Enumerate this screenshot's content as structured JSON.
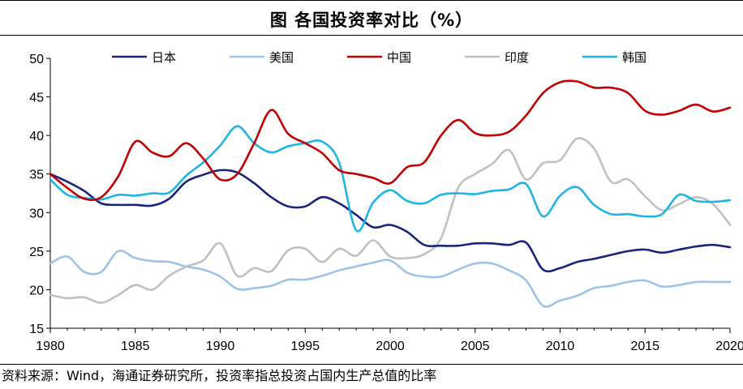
{
  "title": "图  各国投资率对比（%）",
  "source": "资料来源：Wind，海通证券研究所，投资率指总投资占国内生产总值的比率",
  "chart_data": {
    "type": "line",
    "title": "图  各国投资率对比（%）",
    "xlabel": "",
    "ylabel": "",
    "xlim": [
      1980,
      2020
    ],
    "ylim": [
      15,
      50
    ],
    "yticks": [
      15,
      20,
      25,
      30,
      35,
      40,
      45,
      50
    ],
    "xticks": [
      1980,
      1985,
      1990,
      1995,
      2000,
      2005,
      2010,
      2015,
      2020
    ],
    "grid": false,
    "legend_position": "top",
    "x": [
      1980,
      1981,
      1982,
      1983,
      1984,
      1985,
      1986,
      1987,
      1988,
      1989,
      1990,
      1991,
      1992,
      1993,
      1994,
      1995,
      1996,
      1997,
      1998,
      1999,
      2000,
      2001,
      2002,
      2003,
      2004,
      2005,
      2006,
      2007,
      2008,
      2009,
      2010,
      2011,
      2012,
      2013,
      2014,
      2015,
      2016,
      2017,
      2018,
      2019,
      2020
    ],
    "series": [
      {
        "name": "日本",
        "color": "#1a237e",
        "values": [
          35.0,
          34.0,
          32.8,
          31.2,
          31.0,
          31.0,
          30.9,
          31.8,
          34.0,
          34.9,
          35.5,
          35.2,
          33.8,
          32.0,
          30.8,
          30.8,
          32.0,
          31.2,
          29.7,
          28.1,
          28.4,
          27.5,
          25.8,
          25.7,
          25.7,
          26.0,
          26.0,
          25.8,
          26.1,
          22.6,
          22.8,
          23.6,
          24.0,
          24.5,
          25.0,
          25.2,
          24.8,
          25.2,
          25.6,
          25.8,
          25.5
        ]
      },
      {
        "name": "美国",
        "color": "#9ec3e6",
        "values": [
          23.4,
          24.3,
          22.3,
          22.3,
          25.0,
          24.1,
          23.7,
          23.6,
          23.0,
          22.6,
          21.7,
          20.1,
          20.2,
          20.5,
          21.3,
          21.3,
          21.8,
          22.5,
          23.0,
          23.5,
          23.8,
          22.2,
          21.7,
          21.7,
          22.6,
          23.4,
          23.4,
          22.5,
          21.2,
          17.9,
          18.6,
          19.2,
          20.2,
          20.5,
          21.0,
          21.2,
          20.4,
          20.6,
          21.0,
          21.0,
          21.0
        ]
      },
      {
        "name": "中国",
        "color": "#c00000",
        "values": [
          35.0,
          33.2,
          31.8,
          32.0,
          34.7,
          39.2,
          37.8,
          37.3,
          39.0,
          37.0,
          34.3,
          35.0,
          39.0,
          43.3,
          40.2,
          39.0,
          37.7,
          35.5,
          35.0,
          34.5,
          33.8,
          35.9,
          36.5,
          40.0,
          42.0,
          40.3,
          40.0,
          40.5,
          42.6,
          45.5,
          46.9,
          47.0,
          46.2,
          46.2,
          45.5,
          43.2,
          42.7,
          43.2,
          44.0,
          43.1,
          43.6
        ]
      },
      {
        "name": "印度",
        "color": "#c0c0c0",
        "values": [
          19.3,
          18.9,
          19.0,
          18.3,
          19.3,
          20.6,
          20.0,
          21.8,
          23.0,
          23.8,
          26.0,
          21.8,
          22.8,
          22.4,
          25.1,
          25.3,
          23.6,
          25.3,
          24.4,
          26.4,
          24.3,
          24.1,
          24.6,
          26.7,
          33.2,
          35.0,
          36.3,
          38.1,
          34.3,
          36.4,
          36.8,
          39.6,
          38.3,
          34.0,
          34.3,
          32.1,
          30.3,
          31.1,
          32.0,
          31.1,
          28.4
        ]
      },
      {
        "name": "韩国",
        "color": "#1fb3e6",
        "values": [
          34.3,
          32.3,
          31.9,
          31.7,
          32.3,
          32.2,
          32.5,
          32.6,
          34.8,
          36.5,
          38.7,
          41.2,
          39.0,
          37.8,
          38.6,
          39.0,
          39.2,
          36.5,
          27.7,
          31.3,
          32.9,
          31.5,
          31.2,
          32.3,
          32.5,
          32.4,
          32.8,
          33.0,
          33.7,
          29.5,
          32.2,
          33.3,
          31.0,
          29.8,
          29.8,
          29.5,
          29.8,
          32.3,
          31.5,
          31.4,
          31.6
        ]
      }
    ]
  }
}
